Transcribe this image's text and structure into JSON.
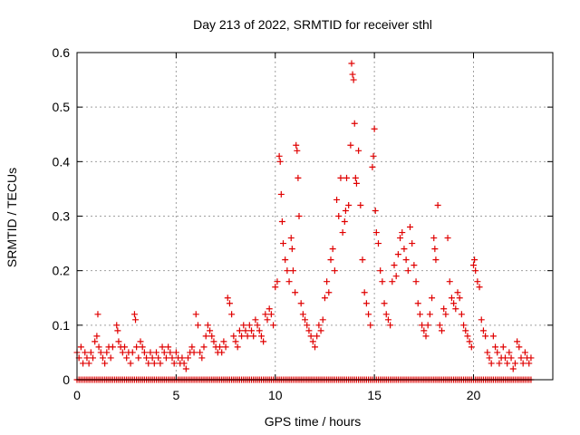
{
  "chart_data": {
    "type": "scatter",
    "title": "Day 213 of 2022, SRMTID for receiver sthl",
    "xlabel": "GPS time / hours",
    "ylabel": "SRMTID / TECUs",
    "xlim": [
      0,
      24
    ],
    "ylim": [
      0,
      0.6
    ],
    "xticks": [
      "0",
      "5",
      "10",
      "15",
      "20"
    ],
    "yticks": [
      "0",
      "0.1",
      "0.2",
      "0.3",
      "0.4",
      "0.5",
      "0.6"
    ],
    "grid": true,
    "marker": "plus",
    "color": "#e00000",
    "series": [
      {
        "name": "SRMTID",
        "points": [
          [
            0.0,
            0.05
          ],
          [
            0.1,
            0.04
          ],
          [
            0.2,
            0.06
          ],
          [
            0.3,
            0.03
          ],
          [
            0.4,
            0.05
          ],
          [
            0.5,
            0.04
          ],
          [
            0.6,
            0.03
          ],
          [
            0.7,
            0.05
          ],
          [
            0.8,
            0.04
          ],
          [
            0.9,
            0.07
          ],
          [
            1.0,
            0.08
          ],
          [
            1.05,
            0.12
          ],
          [
            1.1,
            0.06
          ],
          [
            1.2,
            0.05
          ],
          [
            1.3,
            0.04
          ],
          [
            1.4,
            0.03
          ],
          [
            1.5,
            0.05
          ],
          [
            1.6,
            0.06
          ],
          [
            1.7,
            0.04
          ],
          [
            1.8,
            0.06
          ],
          [
            2.0,
            0.1
          ],
          [
            2.05,
            0.09
          ],
          [
            2.1,
            0.07
          ],
          [
            2.2,
            0.06
          ],
          [
            2.3,
            0.05
          ],
          [
            2.4,
            0.06
          ],
          [
            2.5,
            0.04
          ],
          [
            2.6,
            0.05
          ],
          [
            2.7,
            0.03
          ],
          [
            2.8,
            0.05
          ],
          [
            2.9,
            0.12
          ],
          [
            2.95,
            0.11
          ],
          [
            3.0,
            0.06
          ],
          [
            3.1,
            0.04
          ],
          [
            3.2,
            0.07
          ],
          [
            3.3,
            0.06
          ],
          [
            3.4,
            0.05
          ],
          [
            3.5,
            0.04
          ],
          [
            3.6,
            0.03
          ],
          [
            3.7,
            0.05
          ],
          [
            3.8,
            0.04
          ],
          [
            3.9,
            0.03
          ],
          [
            4.0,
            0.05
          ],
          [
            4.1,
            0.04
          ],
          [
            4.2,
            0.03
          ],
          [
            4.3,
            0.06
          ],
          [
            4.4,
            0.05
          ],
          [
            4.5,
            0.04
          ],
          [
            4.6,
            0.06
          ],
          [
            4.7,
            0.05
          ],
          [
            4.8,
            0.04
          ],
          [
            4.9,
            0.03
          ],
          [
            5.0,
            0.05
          ],
          [
            5.1,
            0.04
          ],
          [
            5.2,
            0.03
          ],
          [
            5.3,
            0.04
          ],
          [
            5.4,
            0.03
          ],
          [
            5.5,
            0.02
          ],
          [
            5.6,
            0.04
          ],
          [
            5.7,
            0.05
          ],
          [
            5.8,
            0.06
          ],
          [
            5.9,
            0.05
          ],
          [
            6.0,
            0.12
          ],
          [
            6.1,
            0.1
          ],
          [
            6.2,
            0.05
          ],
          [
            6.3,
            0.04
          ],
          [
            6.4,
            0.06
          ],
          [
            6.5,
            0.08
          ],
          [
            6.6,
            0.1
          ],
          [
            6.7,
            0.09
          ],
          [
            6.8,
            0.08
          ],
          [
            6.9,
            0.07
          ],
          [
            7.0,
            0.06
          ],
          [
            7.1,
            0.05
          ],
          [
            7.2,
            0.06
          ],
          [
            7.3,
            0.05
          ],
          [
            7.4,
            0.07
          ],
          [
            7.5,
            0.06
          ],
          [
            7.6,
            0.15
          ],
          [
            7.7,
            0.14
          ],
          [
            7.8,
            0.12
          ],
          [
            7.9,
            0.08
          ],
          [
            8.0,
            0.07
          ],
          [
            8.1,
            0.06
          ],
          [
            8.2,
            0.09
          ],
          [
            8.3,
            0.08
          ],
          [
            8.4,
            0.1
          ],
          [
            8.5,
            0.09
          ],
          [
            8.6,
            0.08
          ],
          [
            8.7,
            0.1
          ],
          [
            8.8,
            0.09
          ],
          [
            8.9,
            0.08
          ],
          [
            9.0,
            0.11
          ],
          [
            9.1,
            0.1
          ],
          [
            9.2,
            0.09
          ],
          [
            9.3,
            0.08
          ],
          [
            9.4,
            0.07
          ],
          [
            9.5,
            0.12
          ],
          [
            9.6,
            0.11
          ],
          [
            9.7,
            0.13
          ],
          [
            9.8,
            0.12
          ],
          [
            9.9,
            0.1
          ],
          [
            10.0,
            0.17
          ],
          [
            10.1,
            0.18
          ],
          [
            10.2,
            0.41
          ],
          [
            10.25,
            0.4
          ],
          [
            10.3,
            0.34
          ],
          [
            10.35,
            0.29
          ],
          [
            10.4,
            0.25
          ],
          [
            10.5,
            0.22
          ],
          [
            10.6,
            0.2
          ],
          [
            10.7,
            0.18
          ],
          [
            10.8,
            0.26
          ],
          [
            10.85,
            0.24
          ],
          [
            10.9,
            0.2
          ],
          [
            11.0,
            0.16
          ],
          [
            11.05,
            0.43
          ],
          [
            11.1,
            0.42
          ],
          [
            11.15,
            0.37
          ],
          [
            11.2,
            0.3
          ],
          [
            11.3,
            0.14
          ],
          [
            11.4,
            0.12
          ],
          [
            11.5,
            0.11
          ],
          [
            11.6,
            0.1
          ],
          [
            11.7,
            0.09
          ],
          [
            11.8,
            0.08
          ],
          [
            11.9,
            0.07
          ],
          [
            12.0,
            0.06
          ],
          [
            12.1,
            0.08
          ],
          [
            12.2,
            0.1
          ],
          [
            12.3,
            0.09
          ],
          [
            12.4,
            0.11
          ],
          [
            12.5,
            0.15
          ],
          [
            12.6,
            0.18
          ],
          [
            12.7,
            0.16
          ],
          [
            12.8,
            0.22
          ],
          [
            12.9,
            0.24
          ],
          [
            13.0,
            0.2
          ],
          [
            13.1,
            0.33
          ],
          [
            13.2,
            0.3
          ],
          [
            13.3,
            0.37
          ],
          [
            13.4,
            0.27
          ],
          [
            13.5,
            0.29
          ],
          [
            13.55,
            0.31
          ],
          [
            13.6,
            0.37
          ],
          [
            13.7,
            0.32
          ],
          [
            13.8,
            0.43
          ],
          [
            13.85,
            0.58
          ],
          [
            13.9,
            0.56
          ],
          [
            13.95,
            0.55
          ],
          [
            14.0,
            0.47
          ],
          [
            14.05,
            0.37
          ],
          [
            14.1,
            0.36
          ],
          [
            14.2,
            0.42
          ],
          [
            14.3,
            0.32
          ],
          [
            14.4,
            0.22
          ],
          [
            14.5,
            0.16
          ],
          [
            14.6,
            0.14
          ],
          [
            14.7,
            0.12
          ],
          [
            14.8,
            0.1
          ],
          [
            14.9,
            0.39
          ],
          [
            14.95,
            0.41
          ],
          [
            15.0,
            0.46
          ],
          [
            15.05,
            0.31
          ],
          [
            15.1,
            0.27
          ],
          [
            15.2,
            0.25
          ],
          [
            15.3,
            0.2
          ],
          [
            15.4,
            0.18
          ],
          [
            15.5,
            0.14
          ],
          [
            15.6,
            0.12
          ],
          [
            15.7,
            0.11
          ],
          [
            15.8,
            0.1
          ],
          [
            15.9,
            0.18
          ],
          [
            16.0,
            0.21
          ],
          [
            16.1,
            0.19
          ],
          [
            16.2,
            0.23
          ],
          [
            16.3,
            0.26
          ],
          [
            16.4,
            0.27
          ],
          [
            16.5,
            0.24
          ],
          [
            16.6,
            0.22
          ],
          [
            16.7,
            0.2
          ],
          [
            16.8,
            0.28
          ],
          [
            16.9,
            0.25
          ],
          [
            17.0,
            0.21
          ],
          [
            17.1,
            0.18
          ],
          [
            17.2,
            0.14
          ],
          [
            17.3,
            0.12
          ],
          [
            17.4,
            0.1
          ],
          [
            17.5,
            0.09
          ],
          [
            17.6,
            0.08
          ],
          [
            17.7,
            0.1
          ],
          [
            17.8,
            0.12
          ],
          [
            17.9,
            0.15
          ],
          [
            18.0,
            0.26
          ],
          [
            18.05,
            0.24
          ],
          [
            18.1,
            0.22
          ],
          [
            18.2,
            0.32
          ],
          [
            18.3,
            0.1
          ],
          [
            18.4,
            0.09
          ],
          [
            18.5,
            0.13
          ],
          [
            18.6,
            0.12
          ],
          [
            18.7,
            0.26
          ],
          [
            18.8,
            0.18
          ],
          [
            18.9,
            0.15
          ],
          [
            19.0,
            0.14
          ],
          [
            19.1,
            0.13
          ],
          [
            19.2,
            0.16
          ],
          [
            19.3,
            0.15
          ],
          [
            19.4,
            0.12
          ],
          [
            19.5,
            0.1
          ],
          [
            19.6,
            0.09
          ],
          [
            19.7,
            0.08
          ],
          [
            19.8,
            0.07
          ],
          [
            19.9,
            0.06
          ],
          [
            20.0,
            0.21
          ],
          [
            20.05,
            0.22
          ],
          [
            20.1,
            0.2
          ],
          [
            20.2,
            0.18
          ],
          [
            20.3,
            0.17
          ],
          [
            20.4,
            0.11
          ],
          [
            20.5,
            0.09
          ],
          [
            20.6,
            0.08
          ],
          [
            20.7,
            0.05
          ],
          [
            20.8,
            0.04
          ],
          [
            20.9,
            0.03
          ],
          [
            21.0,
            0.08
          ],
          [
            21.1,
            0.06
          ],
          [
            21.2,
            0.05
          ],
          [
            21.3,
            0.03
          ],
          [
            21.4,
            0.04
          ],
          [
            21.5,
            0.06
          ],
          [
            21.6,
            0.04
          ],
          [
            21.7,
            0.03
          ],
          [
            21.8,
            0.05
          ],
          [
            21.9,
            0.04
          ],
          [
            22.0,
            0.02
          ],
          [
            22.1,
            0.03
          ],
          [
            22.2,
            0.07
          ],
          [
            22.3,
            0.06
          ],
          [
            22.4,
            0.04
          ],
          [
            22.5,
            0.03
          ],
          [
            22.6,
            0.05
          ],
          [
            22.7,
            0.04
          ],
          [
            22.8,
            0.03
          ],
          [
            22.9,
            0.04
          ]
        ],
        "baseline": {
          "y": 0,
          "x_start": 0,
          "x_end": 22.9,
          "step": 0.1
        }
      }
    ]
  }
}
